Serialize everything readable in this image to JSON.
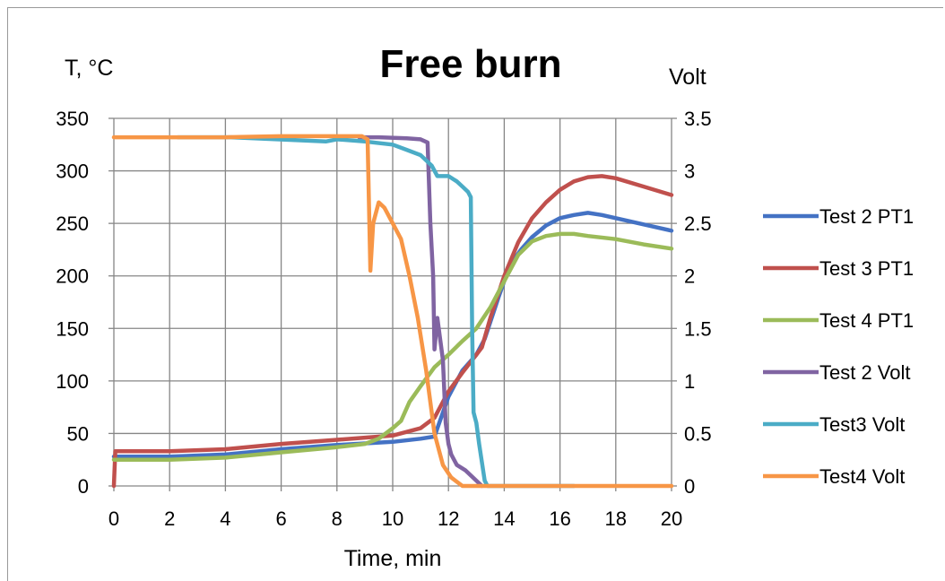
{
  "chart_data": {
    "type": "line",
    "title": "Free burn",
    "xlabel": "Time, min",
    "ylabel": "T, °C",
    "y2label": "Volt",
    "xlim": [
      0,
      20
    ],
    "ylim": [
      0,
      350
    ],
    "y2lim": [
      0,
      3.5
    ],
    "x_ticks": [
      "0",
      "2",
      "4",
      "6",
      "8",
      "10",
      "12",
      "14",
      "16",
      "18",
      "20"
    ],
    "y_ticks": [
      "0",
      "50",
      "100",
      "150",
      "200",
      "250",
      "300",
      "350"
    ],
    "y2_ticks": [
      "0",
      "0.5",
      "1",
      "1.5",
      "2",
      "2.5",
      "3",
      "3.5"
    ],
    "grid": true,
    "legend_position": "right",
    "series": [
      {
        "name": "Test 2 PT1",
        "axis": "left",
        "color": "#4472c4",
        "points": [
          [
            0,
            28
          ],
          [
            2,
            28
          ],
          [
            4,
            30
          ],
          [
            6,
            35
          ],
          [
            8,
            39
          ],
          [
            10,
            42
          ],
          [
            11,
            45
          ],
          [
            11.5,
            47
          ],
          [
            12,
            85
          ],
          [
            12.5,
            110
          ],
          [
            13,
            125
          ],
          [
            13.3,
            140
          ],
          [
            13.8,
            180
          ],
          [
            14.2,
            210
          ],
          [
            14.6,
            225
          ],
          [
            15,
            237
          ],
          [
            15.5,
            248
          ],
          [
            16,
            255
          ],
          [
            16.5,
            258
          ],
          [
            17,
            260
          ],
          [
            17.5,
            258
          ],
          [
            18,
            255
          ],
          [
            19,
            249
          ],
          [
            20,
            243
          ]
        ]
      },
      {
        "name": "Test 3 PT1",
        "axis": "left",
        "color": "#c0504d",
        "points": [
          [
            0,
            0
          ],
          [
            0.05,
            33
          ],
          [
            2,
            33
          ],
          [
            4,
            35
          ],
          [
            6,
            40
          ],
          [
            8,
            44
          ],
          [
            10,
            48
          ],
          [
            11,
            55
          ],
          [
            11.5,
            65
          ],
          [
            12,
            90
          ],
          [
            12.5,
            108
          ],
          [
            13,
            125
          ],
          [
            13.2,
            132
          ],
          [
            13.5,
            160
          ],
          [
            14,
            200
          ],
          [
            14.5,
            232
          ],
          [
            15,
            255
          ],
          [
            15.5,
            270
          ],
          [
            16,
            282
          ],
          [
            16.5,
            290
          ],
          [
            17,
            294
          ],
          [
            17.5,
            295
          ],
          [
            18,
            293
          ],
          [
            19,
            285
          ],
          [
            20,
            277
          ]
        ]
      },
      {
        "name": "Test 4 PT1",
        "axis": "left",
        "color": "#9bbb59",
        "points": [
          [
            0,
            25
          ],
          [
            2,
            25
          ],
          [
            4,
            27
          ],
          [
            6,
            32
          ],
          [
            8,
            37
          ],
          [
            9,
            40
          ],
          [
            9.5,
            45
          ],
          [
            10,
            55
          ],
          [
            10.3,
            62
          ],
          [
            10.6,
            80
          ],
          [
            11,
            95
          ],
          [
            11.5,
            113
          ],
          [
            12,
            125
          ],
          [
            12.5,
            138
          ],
          [
            13,
            150
          ],
          [
            13.5,
            170
          ],
          [
            14,
            195
          ],
          [
            14.5,
            220
          ],
          [
            15,
            233
          ],
          [
            15.5,
            238
          ],
          [
            16,
            240
          ],
          [
            16.5,
            240
          ],
          [
            17,
            238
          ],
          [
            18,
            235
          ],
          [
            19,
            230
          ],
          [
            20,
            226
          ]
        ]
      },
      {
        "name": "Test 2 Volt",
        "axis": "right",
        "color": "#8064a2",
        "points": [
          [
            8.8,
            3.32
          ],
          [
            9.5,
            3.32
          ],
          [
            10.5,
            3.31
          ],
          [
            11,
            3.3
          ],
          [
            11.25,
            3.27
          ],
          [
            11.35,
            2.5
          ],
          [
            11.45,
            2.0
          ],
          [
            11.5,
            1.3
          ],
          [
            11.6,
            1.6
          ],
          [
            11.7,
            1.4
          ],
          [
            11.8,
            1.2
          ],
          [
            11.9,
            0.6
          ],
          [
            12,
            0.4
          ],
          [
            12.1,
            0.3
          ],
          [
            12.3,
            0.2
          ],
          [
            12.6,
            0.15
          ],
          [
            12.8,
            0.1
          ],
          [
            13,
            0.05
          ],
          [
            13.2,
            0
          ]
        ]
      },
      {
        "name": "Test3 Volt",
        "axis": "right",
        "color": "#4bacc6",
        "points": [
          [
            2.3,
            3.32
          ],
          [
            4.2,
            3.32
          ],
          [
            7.6,
            3.28
          ],
          [
            8,
            3.3
          ],
          [
            9,
            3.28
          ],
          [
            10,
            3.25
          ],
          [
            10.5,
            3.2
          ],
          [
            11,
            3.15
          ],
          [
            11.4,
            3.05
          ],
          [
            11.6,
            2.95
          ],
          [
            11.8,
            2.95
          ],
          [
            12,
            2.95
          ],
          [
            12.3,
            2.9
          ],
          [
            12.5,
            2.85
          ],
          [
            12.7,
            2.8
          ],
          [
            12.8,
            2.75
          ],
          [
            12.85,
            1.5
          ],
          [
            12.9,
            0.7
          ],
          [
            13,
            0.6
          ],
          [
            13.1,
            0.4
          ],
          [
            13.3,
            0.05
          ],
          [
            13.4,
            0
          ],
          [
            16,
            0
          ],
          [
            16.5,
            0
          ]
        ]
      },
      {
        "name": "Test4 Volt",
        "axis": "right",
        "color": "#f79646",
        "points": [
          [
            0,
            3.32
          ],
          [
            2,
            3.32
          ],
          [
            4,
            3.32
          ],
          [
            6,
            3.33
          ],
          [
            8,
            3.33
          ],
          [
            8.9,
            3.33
          ],
          [
            9.1,
            3.3
          ],
          [
            9.2,
            2.05
          ],
          [
            9.3,
            2.5
          ],
          [
            9.5,
            2.7
          ],
          [
            9.7,
            2.65
          ],
          [
            10,
            2.5
          ],
          [
            10.3,
            2.35
          ],
          [
            10.6,
            2.0
          ],
          [
            10.9,
            1.6
          ],
          [
            11.2,
            1.1
          ],
          [
            11.5,
            0.5
          ],
          [
            11.8,
            0.2
          ],
          [
            12.1,
            0.08
          ],
          [
            12.5,
            0
          ],
          [
            12.8,
            0
          ],
          [
            17,
            0
          ],
          [
            20,
            0
          ]
        ]
      }
    ]
  }
}
